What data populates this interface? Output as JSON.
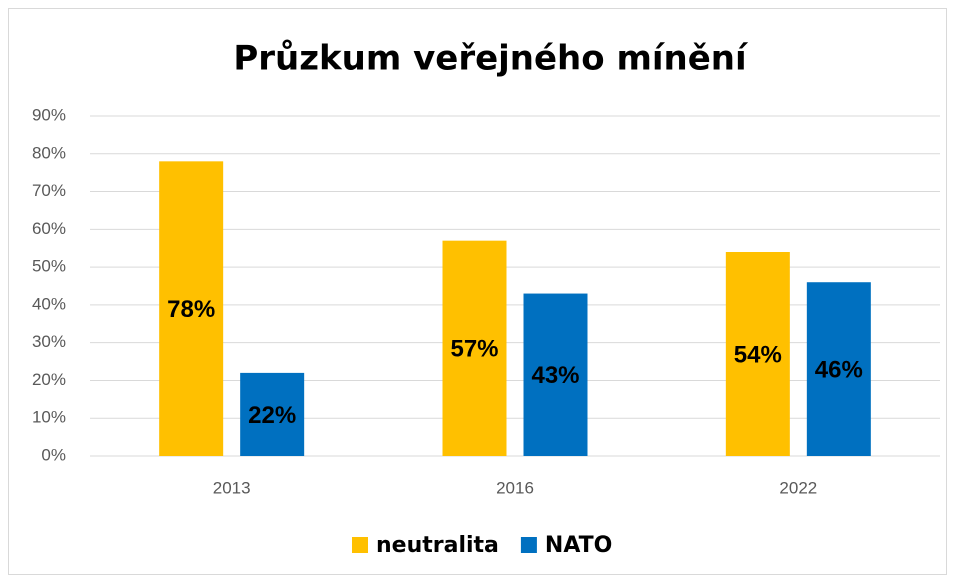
{
  "chart_data": {
    "type": "bar",
    "title": "Průzkum veřejného mínění",
    "categories": [
      "2013",
      "2016",
      "2022"
    ],
    "series": [
      {
        "name": "neutralita",
        "color": "#FFC000",
        "values": [
          78,
          57,
          54
        ],
        "value_labels": [
          "78%",
          "57%",
          "54%"
        ]
      },
      {
        "name": "NATO",
        "color": "#0070C0",
        "values": [
          22,
          43,
          46
        ],
        "value_labels": [
          "22%",
          "43%",
          "46%"
        ]
      }
    ],
    "ylim": [
      0,
      90
    ],
    "yticks": [
      {
        "value": 0,
        "label": "0%"
      },
      {
        "value": 10,
        "label": "10%"
      },
      {
        "value": 20,
        "label": "20%"
      },
      {
        "value": 30,
        "label": "30%"
      },
      {
        "value": 40,
        "label": "40%"
      },
      {
        "value": 50,
        "label": "50%"
      },
      {
        "value": 60,
        "label": "60%"
      },
      {
        "value": 70,
        "label": "70%"
      },
      {
        "value": 80,
        "label": "80%"
      },
      {
        "value": 90,
        "label": "90%"
      }
    ],
    "grid": true,
    "legend": "bottom"
  }
}
